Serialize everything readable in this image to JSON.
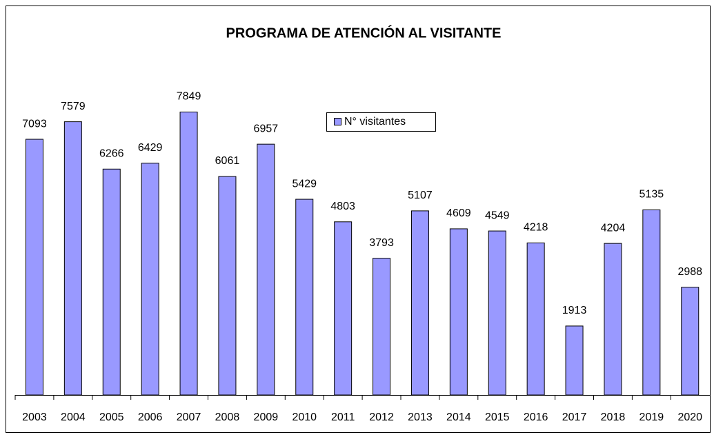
{
  "chart_data": {
    "type": "bar",
    "title": "PROGRAMA DE ATENCIÓN AL VISITANTE",
    "categories": [
      "2003",
      "2004",
      "2005",
      "2006",
      "2007",
      "2008",
      "2009",
      "2010",
      "2011",
      "2012",
      "2013",
      "2014",
      "2015",
      "2016",
      "2017",
      "2018",
      "2019",
      "2020"
    ],
    "series": [
      {
        "name": "N° visitantes",
        "color": "#9999ff",
        "values": [
          7093,
          7579,
          6266,
          6429,
          7849,
          6061,
          6957,
          5429,
          4803,
          3793,
          5107,
          4609,
          4549,
          4218,
          1913,
          4204,
          5135,
          2988
        ]
      }
    ]
  }
}
